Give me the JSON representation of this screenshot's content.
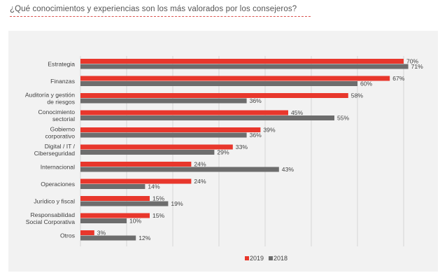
{
  "page": {
    "question": "¿Qué conocimientos y experiencias son los más valorados por los consejeros?"
  },
  "colors": {
    "series_2019": "#e8372c",
    "series_2018": "#6d6d6d",
    "grid": "#d6d6d6",
    "panel": "#f2f2f2"
  },
  "chart_data": {
    "type": "bar",
    "orientation": "horizontal",
    "title": "",
    "xlabel": "",
    "ylabel": "",
    "xlim": [
      0,
      80
    ],
    "grid": true,
    "legend_position": "bottom",
    "categories": [
      [
        "Estrategia"
      ],
      [
        "Finanzas"
      ],
      [
        "Auditoría y gestión",
        "de riesgos"
      ],
      [
        "Conocimiento",
        "sectorial"
      ],
      [
        "Gobierno",
        "corporativo"
      ],
      [
        "Digital / IT /",
        "Ciberseguridad"
      ],
      [
        "Internacional"
      ],
      [
        "Operaciones"
      ],
      [
        "Jurídico y fiscal"
      ],
      [
        "Responsabilidad",
        "Social Corporativa"
      ],
      [
        "Otros"
      ]
    ],
    "series": [
      {
        "name": "2019",
        "values": [
          70,
          67,
          58,
          45,
          39,
          33,
          24,
          24,
          15,
          15,
          3
        ],
        "labels": [
          "70%",
          "67%",
          "58%",
          "45%",
          "39%",
          "33%",
          "24%",
          "24%",
          "15%",
          "15%",
          "3%"
        ]
      },
      {
        "name": "2018",
        "values": [
          71,
          60,
          36,
          55,
          36,
          29,
          43,
          14,
          19,
          10,
          12
        ],
        "labels": [
          "71%",
          "60%",
          "36%",
          "55%",
          "36%",
          "29%",
          "43%",
          "14%",
          "19%",
          "10%",
          "12%"
        ]
      }
    ]
  }
}
